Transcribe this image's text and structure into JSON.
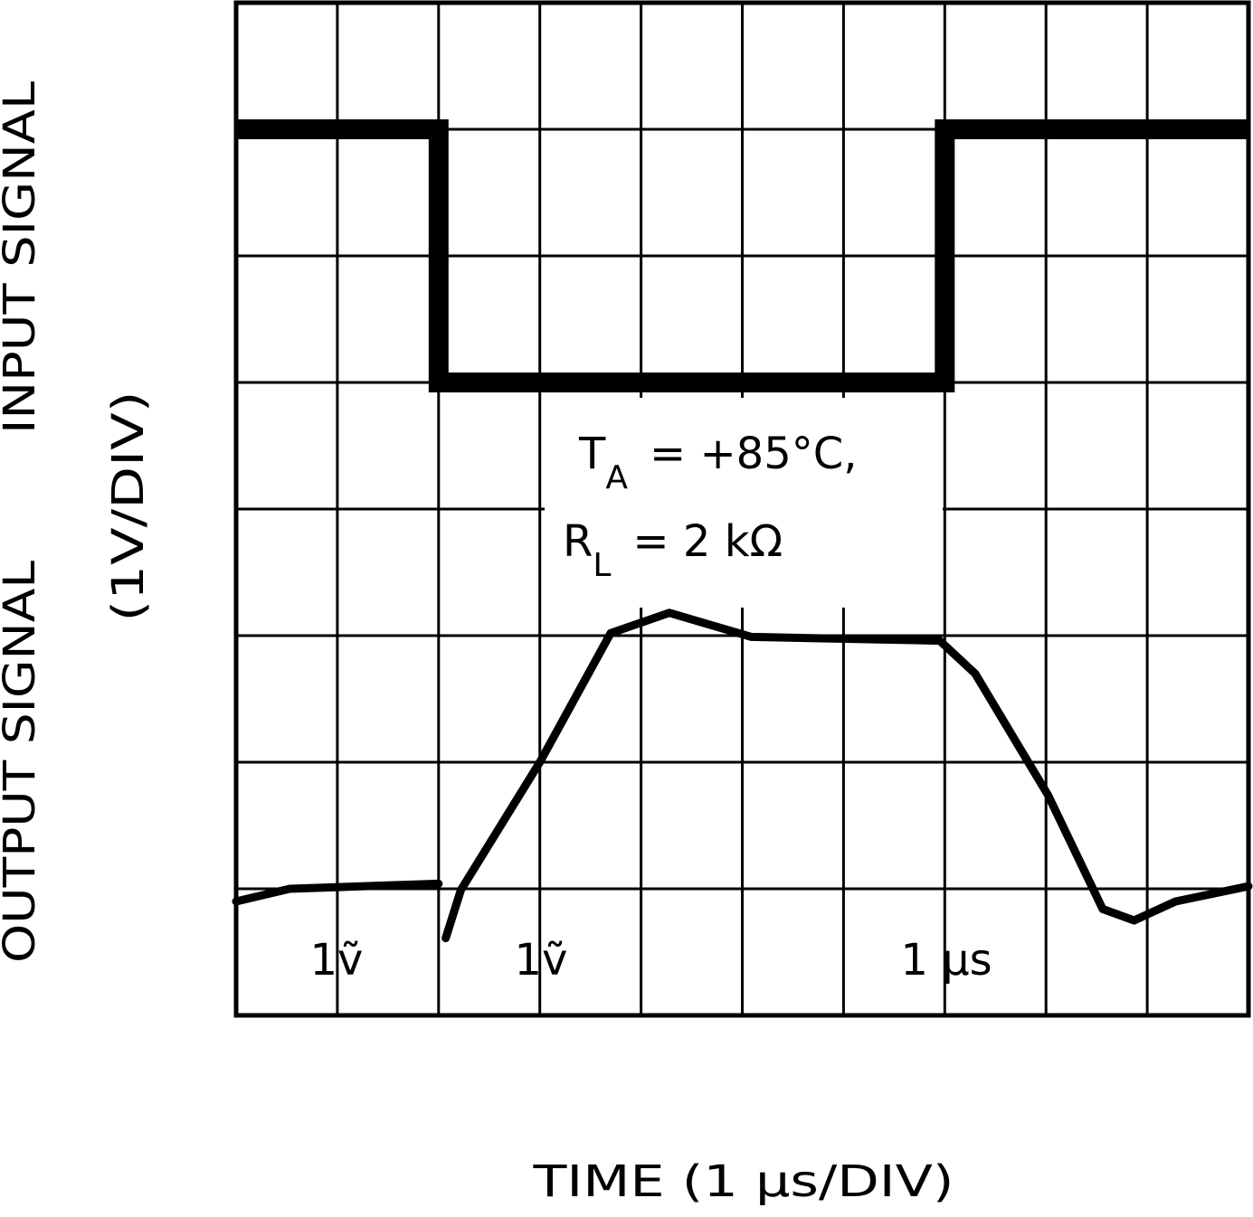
{
  "chart_data": {
    "type": "line",
    "x_label": "TIME (1 µs/DIV)",
    "y_label_output": "OUTPUT SIGNAL",
    "y_label_input": "INPUT SIGNAL",
    "y_label_scale": "(1V/DIV)",
    "annotation_ta": {
      "symbol": "T",
      "subscript": "A",
      "text": "= +85°C,"
    },
    "annotation_rl": {
      "symbol": "R",
      "subscript": "L",
      "text": "= 2 kΩ"
    },
    "scale_labels": [
      "1ṽ",
      "1ṽ",
      "1 µs"
    ],
    "xlim": [
      0,
      10
    ],
    "ylim": [
      0,
      8
    ],
    "xticks": [
      0,
      1,
      2,
      3,
      4,
      5,
      6,
      7,
      8,
      9,
      10
    ],
    "yticks": [
      0,
      1,
      2,
      3,
      4,
      5,
      6,
      7,
      8
    ],
    "grid": true,
    "series": [
      {
        "name": "input",
        "color": "#000000",
        "width": 22,
        "x": [
          0,
          2,
          2,
          7,
          7,
          10
        ],
        "values": [
          7,
          7,
          5,
          5,
          7,
          7
        ]
      },
      {
        "name": "output",
        "color": "#000000",
        "width": 9,
        "x": [
          0,
          0.53,
          2.0,
          2.03,
          2.07,
          2.22,
          3.0,
          3.7,
          4.28,
          5.09,
          6.95,
          6.93,
          6.95,
          7.3,
          8.02,
          8.56,
          8.87,
          9.28,
          10
        ],
        "values": [
          0.9,
          1.0,
          1.04,
          null,
          0.61,
          0.99,
          2.0,
          3.02,
          3.18,
          2.99,
          2.96,
          null,
          2.96,
          2.7,
          1.74,
          0.84,
          0.75,
          0.9,
          1.02
        ]
      }
    ]
  }
}
